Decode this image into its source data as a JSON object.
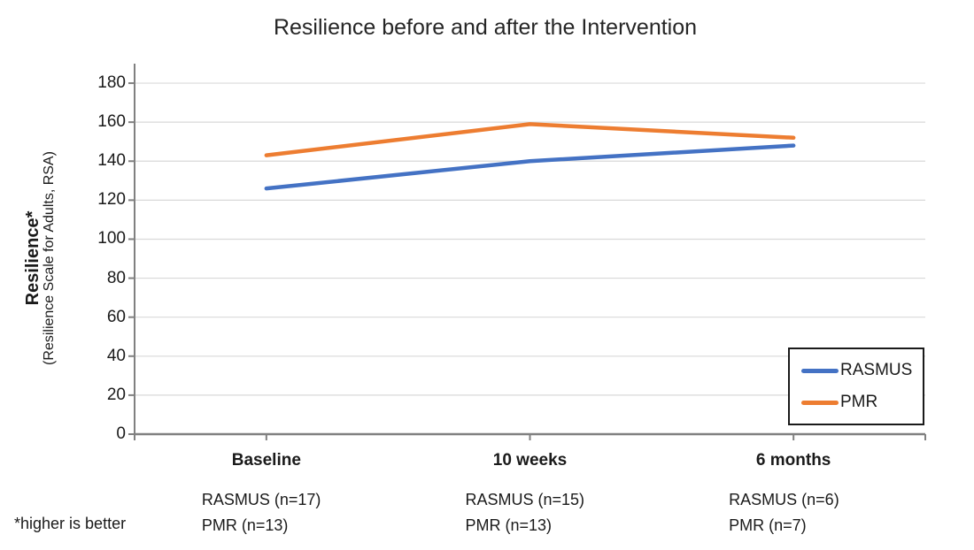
{
  "chart_data": {
    "type": "line",
    "title": "Resilience before and after the Intervention",
    "categories": [
      "Baseline",
      "10 weeks",
      "6 months"
    ],
    "series": [
      {
        "name": "RASMUS",
        "color": "#4472C4",
        "values": [
          126,
          140,
          148
        ]
      },
      {
        "name": "PMR",
        "color": "#ED7D31",
        "values": [
          143,
          159,
          152
        ]
      }
    ],
    "y_axis": {
      "label_main": "Resilience*",
      "label_sub": "(Resilience Scale for Adults, RSA)",
      "ticks": [
        0,
        20,
        40,
        60,
        80,
        100,
        120,
        140,
        160,
        180
      ],
      "max": 190
    },
    "grid": true,
    "legend_position": "bottom-right",
    "sample_sizes": [
      [
        "RASMUS (n=17)",
        "PMR (n=13)"
      ],
      [
        "RASMUS (n=15)",
        "PMR (n=13)"
      ],
      [
        "RASMUS (n=6)",
        "PMR (n=7)"
      ]
    ],
    "footnote": "*higher is better",
    "colors": {
      "gridline": "#D9D9D9",
      "axis": "#808080"
    }
  }
}
